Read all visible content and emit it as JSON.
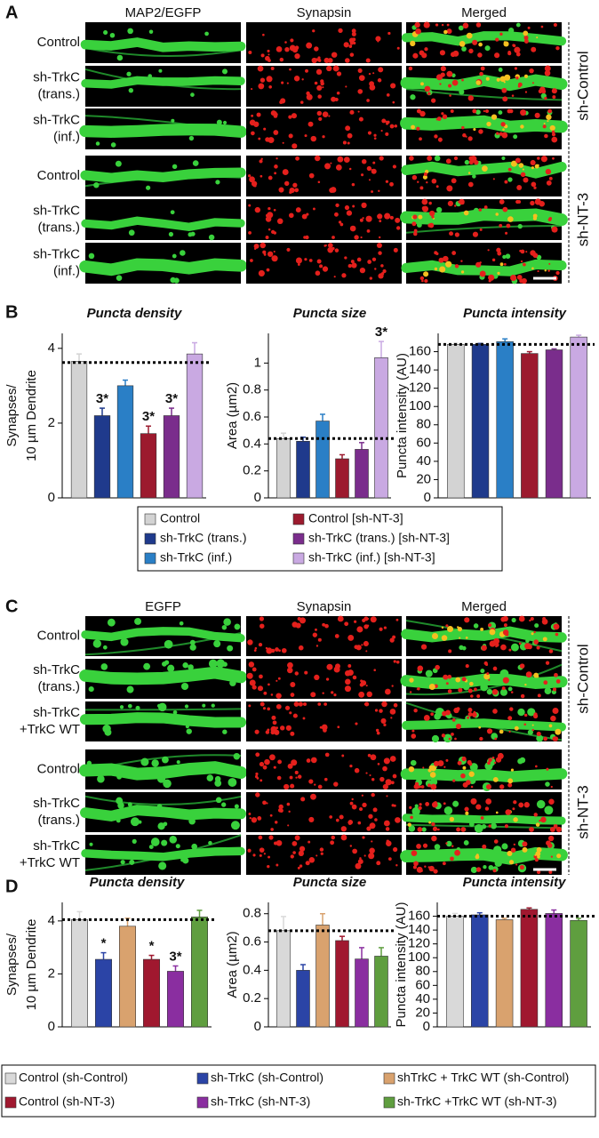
{
  "panel_a": {
    "label": "A",
    "columns": [
      "MAP2/EGFP",
      "Synapsin",
      "Merged"
    ],
    "rows": [
      [
        "Control"
      ],
      [
        "sh-TrkC",
        "(trans.)"
      ],
      [
        "sh-TrkC",
        "(inf.)"
      ],
      [
        "Control"
      ],
      [
        "sh-TrkC",
        "(trans.)"
      ],
      [
        "sh-TrkC",
        "(inf.)"
      ]
    ],
    "groups": [
      "sh-Control",
      "sh-NT-3"
    ]
  },
  "panel_b": {
    "label": "B",
    "legend": [
      "Control",
      "sh-TrkC (trans.)",
      "sh-TrkC (inf.)",
      "Control [sh-NT-3]",
      "sh-TrkC (trans.) [sh-NT-3]",
      "sh-TrkC (inf.) [sh-NT-3]"
    ]
  },
  "panel_c": {
    "label": "C",
    "columns": [
      "EGFP",
      "Synapsin",
      "Merged"
    ],
    "rows": [
      [
        "Control"
      ],
      [
        "sh-TrkC",
        "(trans.)"
      ],
      [
        "sh-TrkC",
        "+TrkC WT"
      ],
      [
        "Control"
      ],
      [
        "sh-TrkC",
        "(trans.)"
      ],
      [
        "sh-TrkC",
        "+TrkC WT"
      ]
    ],
    "groups": [
      "sh-Control",
      "sh-NT-3"
    ]
  },
  "panel_d": {
    "label": "D",
    "legend": [
      "Control (sh-Control)",
      "sh-TrkC (sh-Control)",
      "shTrkC + TrkC WT (sh-Control)",
      "Control (sh-NT-3)",
      "sh-TrkC (sh-NT-3)",
      "sh-TrkC +TrkC WT (sh-NT-3)"
    ]
  },
  "chart_data": [
    {
      "type": "bar",
      "title": "Puncta density",
      "ylabel": [
        "Synapses/",
        "10 µm Dendrite"
      ],
      "values": [
        3.65,
        2.2,
        3.0,
        1.72,
        2.2,
        3.85
      ],
      "errors": [
        0.2,
        0.2,
        0.15,
        0.2,
        0.2,
        0.3
      ],
      "colors": [
        "#d3d3d3",
        "#1f3a8c",
        "#2a7fc6",
        "#9c1a2e",
        "#7a2d8c",
        "#c9a9e2"
      ],
      "significance": [
        null,
        "3*",
        null,
        "3*",
        "3*",
        null
      ],
      "reference_line": 3.62,
      "ylim": [
        0,
        4.4
      ],
      "yticks": [
        0,
        2,
        4
      ]
    },
    {
      "type": "bar",
      "title": "Puncta size",
      "ylabel": [
        "Area (µm2)"
      ],
      "values": [
        0.44,
        0.42,
        0.57,
        0.29,
        0.36,
        1.04
      ],
      "errors": [
        0.04,
        0.03,
        0.05,
        0.03,
        0.05,
        0.12
      ],
      "colors": [
        "#d3d3d3",
        "#1f3a8c",
        "#2a7fc6",
        "#9c1a2e",
        "#7a2d8c",
        "#c9a9e2"
      ],
      "significance": [
        null,
        null,
        null,
        null,
        null,
        "3*"
      ],
      "reference_line": 0.44,
      "ylim": [
        0,
        1.22
      ],
      "yticks": [
        0,
        0.2,
        0.4,
        0.6,
        0.8,
        1.0
      ]
    },
    {
      "type": "bar",
      "title": "Puncta intensity",
      "ylabel": [
        "Puncta intensity (AU)"
      ],
      "values": [
        168,
        168,
        171,
        158,
        162,
        176
      ],
      "errors": [
        1,
        1,
        3,
        2,
        1,
        2
      ],
      "colors": [
        "#d3d3d3",
        "#1f3a8c",
        "#2a7fc6",
        "#9c1a2e",
        "#7a2d8c",
        "#c9a9e2"
      ],
      "reference_line": 168,
      "ylim": [
        0,
        180
      ],
      "yticks": [
        0,
        20,
        40,
        60,
        80,
        100,
        120,
        140,
        160
      ]
    },
    {
      "type": "bar",
      "title": "Puncta density",
      "ylabel": [
        "Synapses/",
        "10 µm Dendrite"
      ],
      "values": [
        4.05,
        2.55,
        3.8,
        2.55,
        2.1,
        4.15
      ],
      "errors": [
        0.3,
        0.25,
        0.3,
        0.15,
        0.2,
        0.25
      ],
      "colors": [
        "#d9d9d9",
        "#2b44a6",
        "#d9a26e",
        "#a0182f",
        "#8a2ea0",
        "#5f9e3f"
      ],
      "significance": [
        null,
        "*",
        null,
        "*",
        "3*",
        null
      ],
      "reference_line": 4.05,
      "ylim": [
        0,
        4.7
      ],
      "yticks": [
        0,
        2,
        4
      ]
    },
    {
      "type": "bar",
      "title": "Puncta size",
      "ylabel": [
        "Area (µm2)"
      ],
      "values": [
        0.68,
        0.4,
        0.72,
        0.61,
        0.48,
        0.5
      ],
      "errors": [
        0.1,
        0.04,
        0.08,
        0.03,
        0.08,
        0.06
      ],
      "colors": [
        "#d9d9d9",
        "#2b44a6",
        "#d9a26e",
        "#a0182f",
        "#8a2ea0",
        "#5f9e3f"
      ],
      "reference_line": 0.68,
      "ylim": [
        0,
        0.88
      ],
      "yticks": [
        0,
        0.2,
        0.4,
        0.6,
        0.8
      ]
    },
    {
      "type": "bar",
      "title": "Puncta intensity",
      "ylabel": [
        "Puncta intensity (AU)"
      ],
      "values": [
        160,
        162,
        155,
        170,
        164,
        154
      ],
      "errors": [
        4,
        3,
        2,
        2,
        5,
        3
      ],
      "colors": [
        "#d9d9d9",
        "#2b44a6",
        "#d9a26e",
        "#a0182f",
        "#8a2ea0",
        "#5f9e3f"
      ],
      "reference_line": 160,
      "ylim": [
        0,
        180
      ],
      "yticks": [
        0,
        20,
        40,
        60,
        80,
        100,
        120,
        140,
        160
      ]
    }
  ]
}
